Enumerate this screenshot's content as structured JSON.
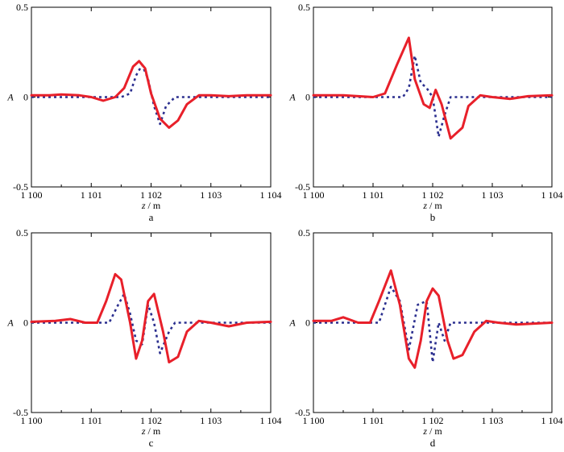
{
  "figure": {
    "xlabel_unit": " / m"
  },
  "colors": {
    "solid": "#e8202a",
    "dotted": "#2b2f8f",
    "frame": "#000000"
  },
  "chart_data": [
    {
      "type": "line",
      "panel_label": "a",
      "xlabel": "z",
      "ylabel": "A",
      "xlim": [
        1100,
        1104
      ],
      "ylim": [
        -0.5,
        0.5
      ],
      "xticks": [
        "1 100",
        "1 101",
        "1 102",
        "1 103",
        "1 104"
      ],
      "yticks": [
        "0.5",
        "0",
        "-0.5"
      ],
      "series": [
        {
          "style": "solid",
          "points": [
            [
              1100,
              0.01
            ],
            [
              1100.3,
              0.01
            ],
            [
              1100.5,
              0.015
            ],
            [
              1100.8,
              0.01
            ],
            [
              1101,
              0.0
            ],
            [
              1101.2,
              -0.02
            ],
            [
              1101.4,
              0.0
            ],
            [
              1101.55,
              0.05
            ],
            [
              1101.7,
              0.17
            ],
            [
              1101.8,
              0.2
            ],
            [
              1101.9,
              0.16
            ],
            [
              1102,
              0.02
            ],
            [
              1102.15,
              -0.12
            ],
            [
              1102.3,
              -0.17
            ],
            [
              1102.45,
              -0.13
            ],
            [
              1102.6,
              -0.04
            ],
            [
              1102.8,
              0.01
            ],
            [
              1103,
              0.01
            ],
            [
              1103.3,
              0.005
            ],
            [
              1103.6,
              0.01
            ],
            [
              1104,
              0.01
            ]
          ]
        },
        {
          "style": "dotted",
          "points": [
            [
              1100,
              0.0
            ],
            [
              1101.5,
              0.0
            ],
            [
              1101.65,
              0.02
            ],
            [
              1101.75,
              0.12
            ],
            [
              1101.85,
              0.18
            ],
            [
              1101.95,
              0.1
            ],
            [
              1102.05,
              -0.05
            ],
            [
              1102.15,
              -0.15
            ],
            [
              1102.25,
              -0.05
            ],
            [
              1102.4,
              0.0
            ],
            [
              1104,
              0.0
            ]
          ]
        }
      ]
    },
    {
      "type": "line",
      "panel_label": "b",
      "xlabel": "z",
      "ylabel": "A",
      "xlim": [
        1100,
        1104
      ],
      "ylim": [
        -0.5,
        0.5
      ],
      "xticks": [
        "1 100",
        "1 101",
        "1 102",
        "1 103",
        "1 104"
      ],
      "yticks": [
        "0.5",
        "0",
        "-0.5"
      ],
      "series": [
        {
          "style": "solid",
          "points": [
            [
              1100,
              0.01
            ],
            [
              1100.5,
              0.01
            ],
            [
              1101,
              0.0
            ],
            [
              1101.2,
              0.02
            ],
            [
              1101.4,
              0.18
            ],
            [
              1101.6,
              0.33
            ],
            [
              1101.7,
              0.1
            ],
            [
              1101.85,
              -0.04
            ],
            [
              1101.95,
              -0.06
            ],
            [
              1102.05,
              0.04
            ],
            [
              1102.15,
              -0.04
            ],
            [
              1102.3,
              -0.23
            ],
            [
              1102.5,
              -0.17
            ],
            [
              1102.6,
              -0.05
            ],
            [
              1102.8,
              0.01
            ],
            [
              1103,
              0.0
            ],
            [
              1103.3,
              -0.01
            ],
            [
              1103.6,
              0.005
            ],
            [
              1104,
              0.01
            ]
          ]
        },
        {
          "style": "dotted",
          "points": [
            [
              1100,
              0.0
            ],
            [
              1101.5,
              0.0
            ],
            [
              1101.6,
              0.05
            ],
            [
              1101.7,
              0.23
            ],
            [
              1101.8,
              0.08
            ],
            [
              1101.9,
              0.05
            ],
            [
              1102.0,
              0.0
            ],
            [
              1102.1,
              -0.22
            ],
            [
              1102.2,
              -0.1
            ],
            [
              1102.3,
              0.0
            ],
            [
              1104,
              0.0
            ]
          ]
        }
      ]
    },
    {
      "type": "line",
      "panel_label": "c",
      "xlabel": "z",
      "ylabel": "A",
      "xlim": [
        1100,
        1104
      ],
      "ylim": [
        -0.5,
        0.5
      ],
      "xticks": [
        "1 100",
        "1 101",
        "1 102",
        "1 103",
        "1 104"
      ],
      "yticks": [
        "0.5",
        "0",
        "-0.5"
      ],
      "series": [
        {
          "style": "solid",
          "points": [
            [
              1100,
              0.005
            ],
            [
              1100.4,
              0.01
            ],
            [
              1100.65,
              0.02
            ],
            [
              1100.9,
              0.0
            ],
            [
              1101.1,
              0.0
            ],
            [
              1101.25,
              0.12
            ],
            [
              1101.4,
              0.27
            ],
            [
              1101.5,
              0.24
            ],
            [
              1101.65,
              0.0
            ],
            [
              1101.75,
              -0.2
            ],
            [
              1101.85,
              -0.1
            ],
            [
              1101.95,
              0.12
            ],
            [
              1102.05,
              0.16
            ],
            [
              1102.2,
              -0.05
            ],
            [
              1102.3,
              -0.22
            ],
            [
              1102.45,
              -0.19
            ],
            [
              1102.6,
              -0.05
            ],
            [
              1102.8,
              0.01
            ],
            [
              1103.0,
              0.0
            ],
            [
              1103.3,
              -0.02
            ],
            [
              1103.6,
              0.0
            ],
            [
              1104,
              0.005
            ]
          ]
        },
        {
          "style": "dotted",
          "points": [
            [
              1100,
              0.0
            ],
            [
              1101.3,
              0.0
            ],
            [
              1101.45,
              0.1
            ],
            [
              1101.55,
              0.16
            ],
            [
              1101.65,
              0.05
            ],
            [
              1101.75,
              -0.1
            ],
            [
              1101.85,
              -0.12
            ],
            [
              1101.95,
              0.1
            ],
            [
              1102.05,
              0.0
            ],
            [
              1102.15,
              -0.17
            ],
            [
              1102.3,
              -0.05
            ],
            [
              1102.4,
              0.0
            ],
            [
              1104,
              0.0
            ]
          ]
        }
      ]
    },
    {
      "type": "line",
      "panel_label": "d",
      "xlabel": "z",
      "ylabel": "A",
      "xlim": [
        1100,
        1104
      ],
      "ylim": [
        -0.5,
        0.5
      ],
      "xticks": [
        "1 100",
        "1 101",
        "1 102",
        "1 103",
        "1 104"
      ],
      "yticks": [
        "0.5",
        "0",
        "-0.5"
      ],
      "series": [
        {
          "style": "solid",
          "points": [
            [
              1100,
              0.01
            ],
            [
              1100.3,
              0.01
            ],
            [
              1100.5,
              0.03
            ],
            [
              1100.75,
              0.0
            ],
            [
              1100.95,
              0.0
            ],
            [
              1101.1,
              0.12
            ],
            [
              1101.3,
              0.29
            ],
            [
              1101.45,
              0.1
            ],
            [
              1101.6,
              -0.2
            ],
            [
              1101.7,
              -0.25
            ],
            [
              1101.8,
              -0.1
            ],
            [
              1101.9,
              0.12
            ],
            [
              1102.0,
              0.19
            ],
            [
              1102.1,
              0.15
            ],
            [
              1102.25,
              -0.1
            ],
            [
              1102.35,
              -0.2
            ],
            [
              1102.5,
              -0.18
            ],
            [
              1102.7,
              -0.05
            ],
            [
              1102.9,
              0.01
            ],
            [
              1103.1,
              0.0
            ],
            [
              1103.4,
              -0.01
            ],
            [
              1103.7,
              -0.005
            ],
            [
              1104,
              0.0
            ]
          ]
        },
        {
          "style": "dotted",
          "points": [
            [
              1100,
              0.0
            ],
            [
              1101.1,
              0.0
            ],
            [
              1101.3,
              0.2
            ],
            [
              1101.45,
              0.12
            ],
            [
              1101.6,
              -0.15
            ],
            [
              1101.75,
              0.1
            ],
            [
              1101.9,
              0.12
            ],
            [
              1102.0,
              -0.22
            ],
            [
              1102.1,
              0.0
            ],
            [
              1102.2,
              -0.1
            ],
            [
              1102.3,
              0.0
            ],
            [
              1104,
              0.0
            ]
          ]
        }
      ]
    }
  ]
}
